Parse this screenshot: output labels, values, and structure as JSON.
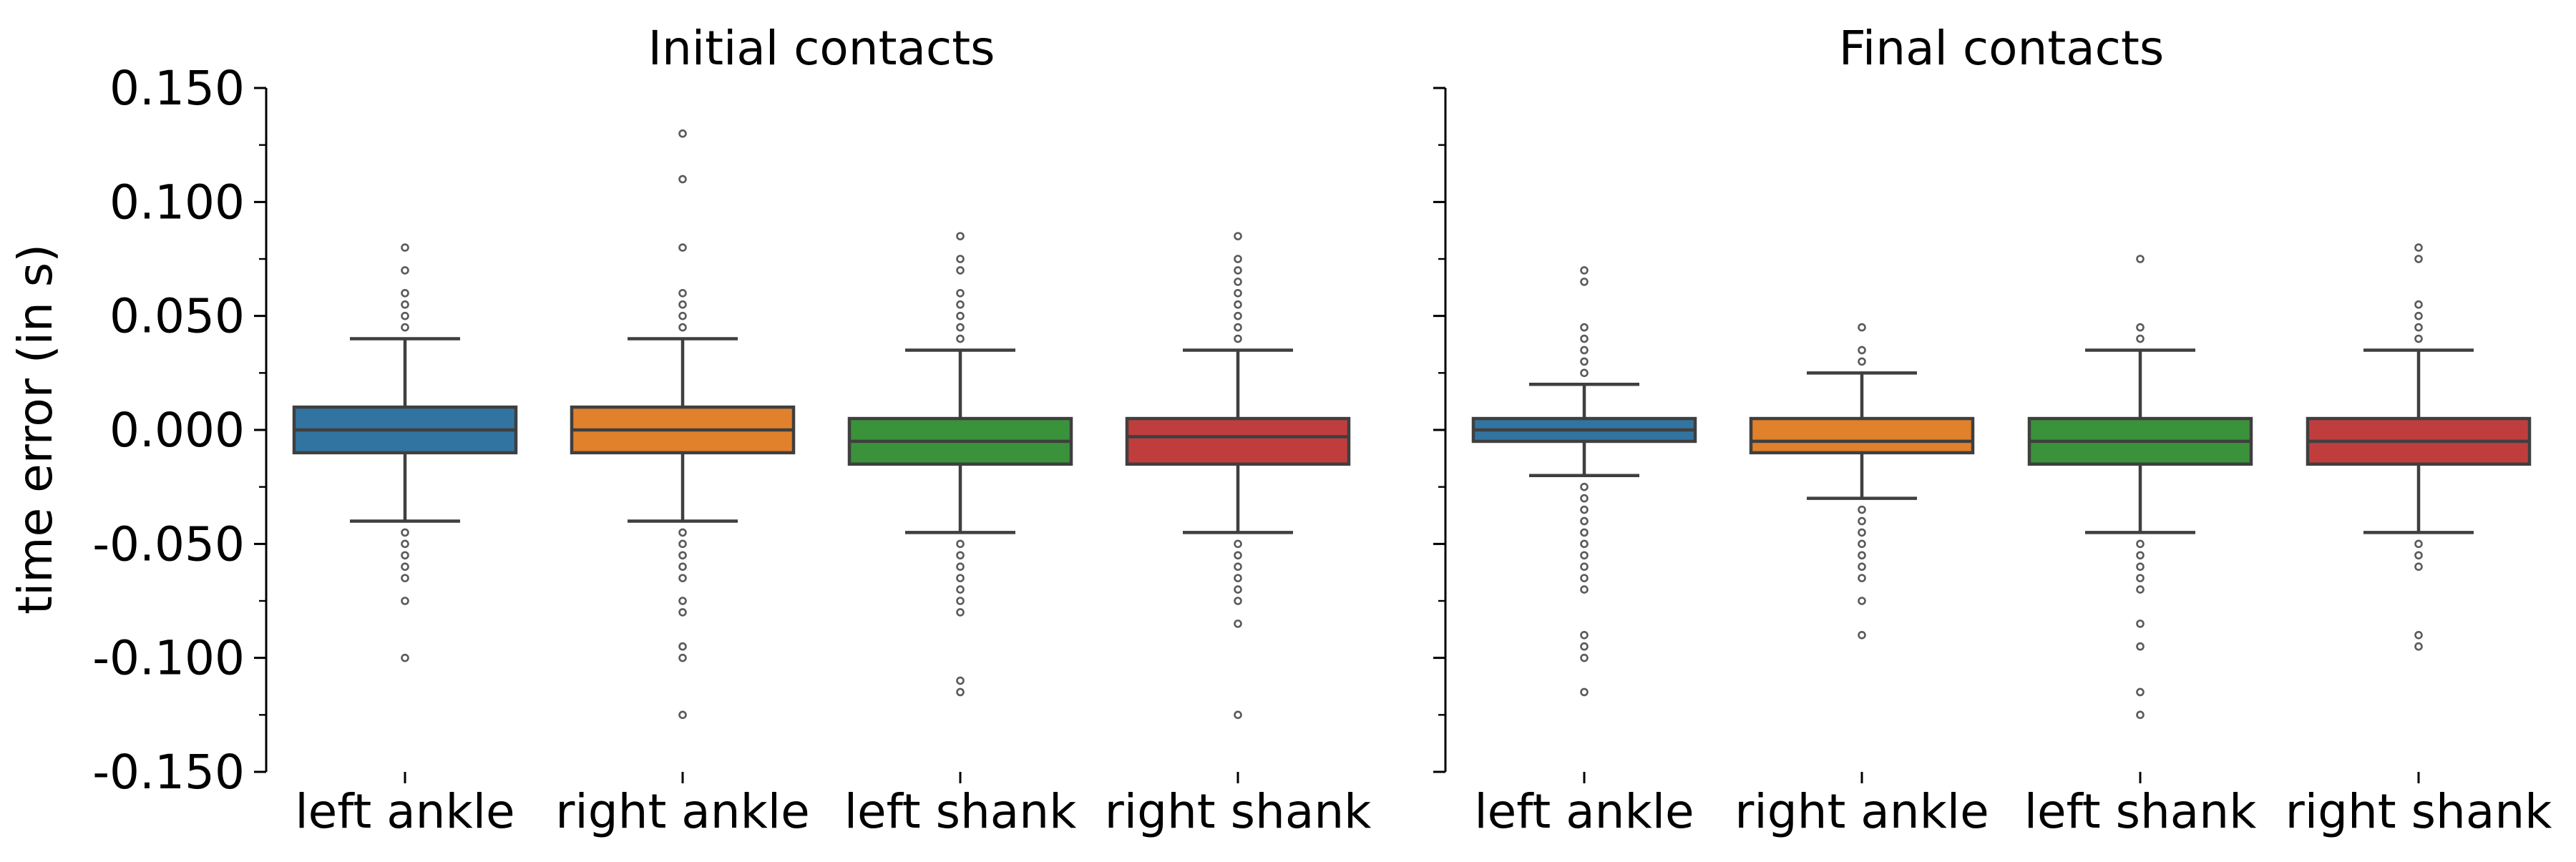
{
  "chart_data": {
    "type": "box",
    "ylabel": "time error (in s)",
    "ylim": [
      -0.15,
      0.15
    ],
    "y_ticks": [
      "0.150",
      "0.100",
      "0.050",
      "0.000",
      "-0.050",
      "-0.100",
      "-0.150"
    ],
    "y_tick_values": [
      0.15,
      0.1,
      0.05,
      0.0,
      -0.05,
      -0.1,
      -0.15
    ],
    "y_minor_step": 0.025,
    "grid": false,
    "categories": [
      "left ankle",
      "right ankle",
      "left shank",
      "right shank"
    ],
    "colors": [
      "#3274a1",
      "#e1812c",
      "#3a923a",
      "#c03d3e"
    ],
    "panels": [
      {
        "title": "Initial contacts",
        "boxes": [
          {
            "category": "left ankle",
            "whisker_low": -0.04,
            "q1": -0.01,
            "median": 0.0,
            "q3": 0.01,
            "whisker_high": 0.04,
            "outliers": [
              0.08,
              0.07,
              0.06,
              0.055,
              0.05,
              0.045,
              -0.045,
              -0.05,
              -0.055,
              -0.06,
              -0.065,
              -0.075,
              -0.1
            ]
          },
          {
            "category": "right ankle",
            "whisker_low": -0.04,
            "q1": -0.01,
            "median": 0.0,
            "q3": 0.01,
            "whisker_high": 0.04,
            "outliers": [
              0.13,
              0.11,
              0.08,
              0.06,
              0.055,
              0.05,
              0.045,
              -0.045,
              -0.05,
              -0.055,
              -0.06,
              -0.065,
              -0.075,
              -0.08,
              -0.095,
              -0.1,
              -0.125
            ]
          },
          {
            "category": "left shank",
            "whisker_low": -0.045,
            "q1": -0.015,
            "median": -0.005,
            "q3": 0.005,
            "whisker_high": 0.035,
            "outliers": [
              0.085,
              0.075,
              0.07,
              0.06,
              0.055,
              0.05,
              0.045,
              0.04,
              -0.05,
              -0.055,
              -0.06,
              -0.065,
              -0.07,
              -0.075,
              -0.08,
              -0.11,
              -0.115
            ]
          },
          {
            "category": "right shank",
            "whisker_low": -0.045,
            "q1": -0.015,
            "median": -0.003,
            "q3": 0.005,
            "whisker_high": 0.035,
            "outliers": [
              0.085,
              0.075,
              0.07,
              0.065,
              0.06,
              0.055,
              0.05,
              0.045,
              0.04,
              -0.05,
              -0.055,
              -0.06,
              -0.065,
              -0.07,
              -0.075,
              -0.085,
              -0.125
            ]
          }
        ]
      },
      {
        "title": "Final contacts",
        "boxes": [
          {
            "category": "left ankle",
            "whisker_low": -0.02,
            "q1": -0.005,
            "median": 0.0,
            "q3": 0.005,
            "whisker_high": 0.02,
            "outliers": [
              0.07,
              0.065,
              0.045,
              0.04,
              0.035,
              0.03,
              0.025,
              -0.025,
              -0.03,
              -0.035,
              -0.04,
              -0.045,
              -0.05,
              -0.055,
              -0.06,
              -0.065,
              -0.07,
              -0.09,
              -0.095,
              -0.1,
              -0.115
            ]
          },
          {
            "category": "right ankle",
            "whisker_low": -0.03,
            "q1": -0.01,
            "median": -0.005,
            "q3": 0.005,
            "whisker_high": 0.025,
            "outliers": [
              0.045,
              0.035,
              0.03,
              -0.035,
              -0.04,
              -0.045,
              -0.05,
              -0.055,
              -0.06,
              -0.065,
              -0.075,
              -0.09
            ]
          },
          {
            "category": "left shank",
            "whisker_low": -0.045,
            "q1": -0.015,
            "median": -0.005,
            "q3": 0.005,
            "whisker_high": 0.035,
            "outliers": [
              0.075,
              0.045,
              0.04,
              -0.05,
              -0.055,
              -0.06,
              -0.065,
              -0.07,
              -0.085,
              -0.095,
              -0.115,
              -0.125
            ]
          },
          {
            "category": "right shank",
            "whisker_low": -0.045,
            "q1": -0.015,
            "median": -0.005,
            "q3": 0.005,
            "whisker_high": 0.035,
            "outliers": [
              0.08,
              0.075,
              0.055,
              0.05,
              0.045,
              0.04,
              -0.05,
              -0.055,
              -0.06,
              -0.09,
              -0.095
            ]
          }
        ]
      }
    ]
  }
}
